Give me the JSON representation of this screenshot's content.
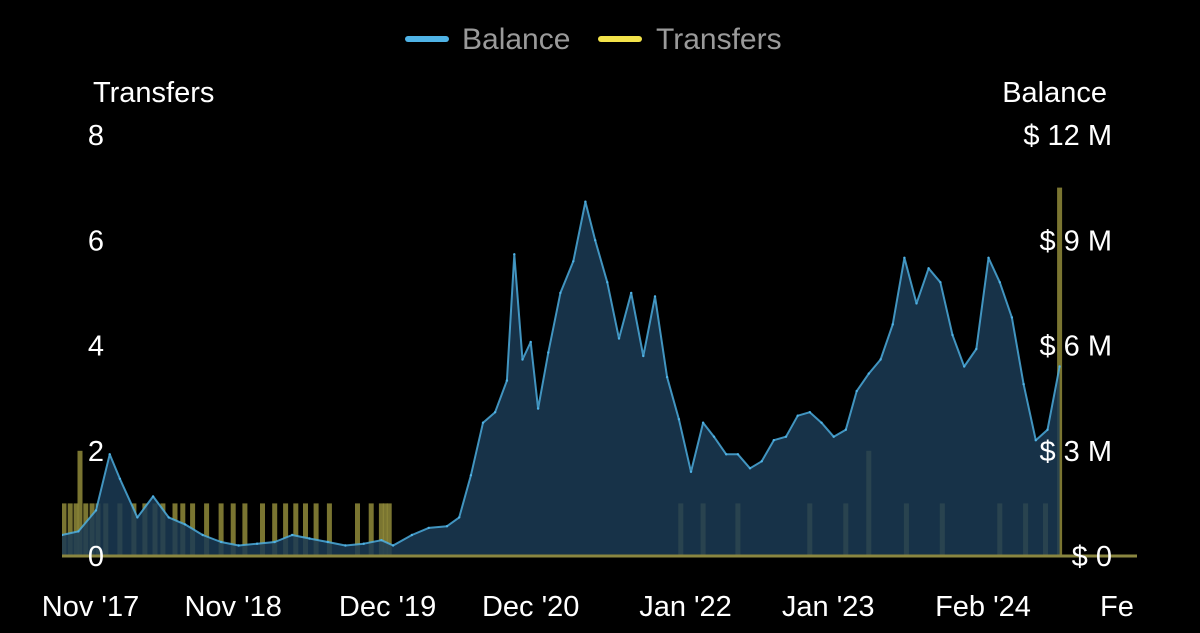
{
  "chart_data": {
    "type": "line",
    "legend": [
      {
        "label": "Balance",
        "color": "#4fb3e6"
      },
      {
        "label": "Transfers",
        "color": "#f3e34a"
      }
    ],
    "legend_position": "top-center",
    "grid": false,
    "y_left": {
      "title": "Transfers",
      "ticks": [
        {
          "label": "8",
          "value": 8
        },
        {
          "label": "6",
          "value": 6
        },
        {
          "label": "4",
          "value": 4
        },
        {
          "label": "2",
          "value": 2
        },
        {
          "label": "0",
          "value": 0
        }
      ],
      "range": [
        0,
        8
      ]
    },
    "y_right": {
      "title": "Balance",
      "ticks": [
        {
          "label": "$ 12 M",
          "value": 12
        },
        {
          "label": "$ 9 M",
          "value": 9
        },
        {
          "label": "$ 6 M",
          "value": 6
        },
        {
          "label": "$ 3 M",
          "value": 3
        },
        {
          "label": "$ 0",
          "value": 0
        }
      ],
      "range": [
        0,
        12
      ],
      "unit": "$ M"
    },
    "x_axis": {
      "range": [
        "2017-08-20",
        "2025-03-01"
      ],
      "ticks": [
        {
          "label": "Nov '17",
          "date": "2017-11-01"
        },
        {
          "label": "Nov '18",
          "date": "2018-11-01"
        },
        {
          "label": "Dec '19",
          "date": "2019-12-01"
        },
        {
          "label": "Dec '20",
          "date": "2020-12-01"
        },
        {
          "label": "Jan '22",
          "date": "2022-01-01"
        },
        {
          "label": "Jan '23",
          "date": "2023-01-01"
        },
        {
          "label": "Feb '24",
          "date": "2024-02-01"
        },
        {
          "label": "Fe",
          "date": "2025-02-01"
        }
      ]
    },
    "series": [
      {
        "name": "Balance",
        "axis": "right",
        "points": [
          [
            "2017-08-20",
            0.6
          ],
          [
            "2017-10-01",
            0.7
          ],
          [
            "2017-11-15",
            1.3
          ],
          [
            "2017-12-20",
            2.9
          ],
          [
            "2018-01-15",
            2.2
          ],
          [
            "2018-03-01",
            1.1
          ],
          [
            "2018-04-10",
            1.7
          ],
          [
            "2018-05-20",
            1.1
          ],
          [
            "2018-07-01",
            0.9
          ],
          [
            "2018-08-15",
            0.6
          ],
          [
            "2018-10-01",
            0.4
          ],
          [
            "2018-11-15",
            0.3
          ],
          [
            "2019-01-01",
            0.35
          ],
          [
            "2019-02-15",
            0.4
          ],
          [
            "2019-04-01",
            0.6
          ],
          [
            "2019-05-15",
            0.5
          ],
          [
            "2019-07-01",
            0.4
          ],
          [
            "2019-08-15",
            0.3
          ],
          [
            "2019-10-01",
            0.35
          ],
          [
            "2019-11-15",
            0.45
          ],
          [
            "2019-12-15",
            0.3
          ],
          [
            "2020-02-01",
            0.6
          ],
          [
            "2020-03-15",
            0.8
          ],
          [
            "2020-05-01",
            0.85
          ],
          [
            "2020-06-01",
            1.1
          ],
          [
            "2020-07-01",
            2.3
          ],
          [
            "2020-08-01",
            3.8
          ],
          [
            "2020-09-01",
            4.1
          ],
          [
            "2020-10-01",
            5.0
          ],
          [
            "2020-10-20",
            8.6
          ],
          [
            "2020-11-10",
            5.6
          ],
          [
            "2020-12-01",
            6.1
          ],
          [
            "2020-12-20",
            4.2
          ],
          [
            "2021-01-15",
            5.8
          ],
          [
            "2021-02-15",
            7.5
          ],
          [
            "2021-03-20",
            8.4
          ],
          [
            "2021-04-20",
            10.1
          ],
          [
            "2021-05-15",
            9.0
          ],
          [
            "2021-06-15",
            7.8
          ],
          [
            "2021-07-15",
            6.2
          ],
          [
            "2021-08-15",
            7.5
          ],
          [
            "2021-09-15",
            5.7
          ],
          [
            "2021-10-15",
            7.4
          ],
          [
            "2021-11-15",
            5.1
          ],
          [
            "2021-12-15",
            3.9
          ],
          [
            "2022-01-15",
            2.4
          ],
          [
            "2022-02-15",
            3.8
          ],
          [
            "2022-03-15",
            3.4
          ],
          [
            "2022-04-15",
            2.9
          ],
          [
            "2022-05-15",
            2.9
          ],
          [
            "2022-06-15",
            2.5
          ],
          [
            "2022-07-15",
            2.7
          ],
          [
            "2022-08-15",
            3.3
          ],
          [
            "2022-09-15",
            3.4
          ],
          [
            "2022-10-15",
            4.0
          ],
          [
            "2022-11-15",
            4.1
          ],
          [
            "2022-12-15",
            3.8
          ],
          [
            "2023-01-15",
            3.4
          ],
          [
            "2023-02-15",
            3.6
          ],
          [
            "2023-03-15",
            4.7
          ],
          [
            "2023-04-15",
            5.2
          ],
          [
            "2023-05-15",
            5.6
          ],
          [
            "2023-06-15",
            6.6
          ],
          [
            "2023-07-15",
            8.5
          ],
          [
            "2023-08-15",
            7.2
          ],
          [
            "2023-09-15",
            8.2
          ],
          [
            "2023-10-15",
            7.8
          ],
          [
            "2023-11-15",
            6.3
          ],
          [
            "2023-12-15",
            5.4
          ],
          [
            "2024-01-15",
            5.9
          ],
          [
            "2024-02-15",
            8.5
          ],
          [
            "2024-03-15",
            7.8
          ],
          [
            "2024-04-15",
            6.8
          ],
          [
            "2024-05-15",
            4.9
          ],
          [
            "2024-06-15",
            3.3
          ],
          [
            "2024-07-15",
            3.6
          ],
          [
            "2024-08-15",
            5.4
          ]
        ]
      },
      {
        "name": "Transfers",
        "axis": "left",
        "bars": [
          [
            "2017-08-25",
            1
          ],
          [
            "2017-09-10",
            1
          ],
          [
            "2017-09-25",
            1
          ],
          [
            "2017-10-05",
            2
          ],
          [
            "2017-10-20",
            1
          ],
          [
            "2017-11-05",
            1
          ],
          [
            "2017-11-20",
            1
          ],
          [
            "2017-12-10",
            1
          ],
          [
            "2018-01-15",
            1
          ],
          [
            "2018-02-20",
            1
          ],
          [
            "2018-03-20",
            1
          ],
          [
            "2018-04-15",
            1
          ],
          [
            "2018-05-05",
            1
          ],
          [
            "2018-06-05",
            1
          ],
          [
            "2018-06-25",
            1
          ],
          [
            "2018-07-20",
            1
          ],
          [
            "2018-08-25",
            1
          ],
          [
            "2018-10-01",
            1
          ],
          [
            "2018-11-01",
            1
          ],
          [
            "2018-12-01",
            1
          ],
          [
            "2019-01-15",
            1
          ],
          [
            "2019-02-15",
            1
          ],
          [
            "2019-03-15",
            1
          ],
          [
            "2019-04-10",
            1
          ],
          [
            "2019-05-05",
            1
          ],
          [
            "2019-06-01",
            1
          ],
          [
            "2019-07-05",
            1
          ],
          [
            "2019-09-15",
            1
          ],
          [
            "2019-10-20",
            1
          ],
          [
            "2019-11-15",
            1
          ],
          [
            "2019-11-25",
            1
          ],
          [
            "2019-12-05",
            1
          ],
          [
            "2021-12-20",
            1
          ],
          [
            "2022-02-15",
            1
          ],
          [
            "2022-05-15",
            1
          ],
          [
            "2022-11-15",
            1
          ],
          [
            "2023-02-15",
            1
          ],
          [
            "2023-04-15",
            2
          ],
          [
            "2023-07-20",
            1
          ],
          [
            "2023-10-20",
            1
          ],
          [
            "2024-03-15",
            1
          ],
          [
            "2024-05-20",
            1
          ],
          [
            "2024-07-10",
            1
          ],
          [
            "2024-08-15",
            7
          ]
        ]
      }
    ]
  }
}
